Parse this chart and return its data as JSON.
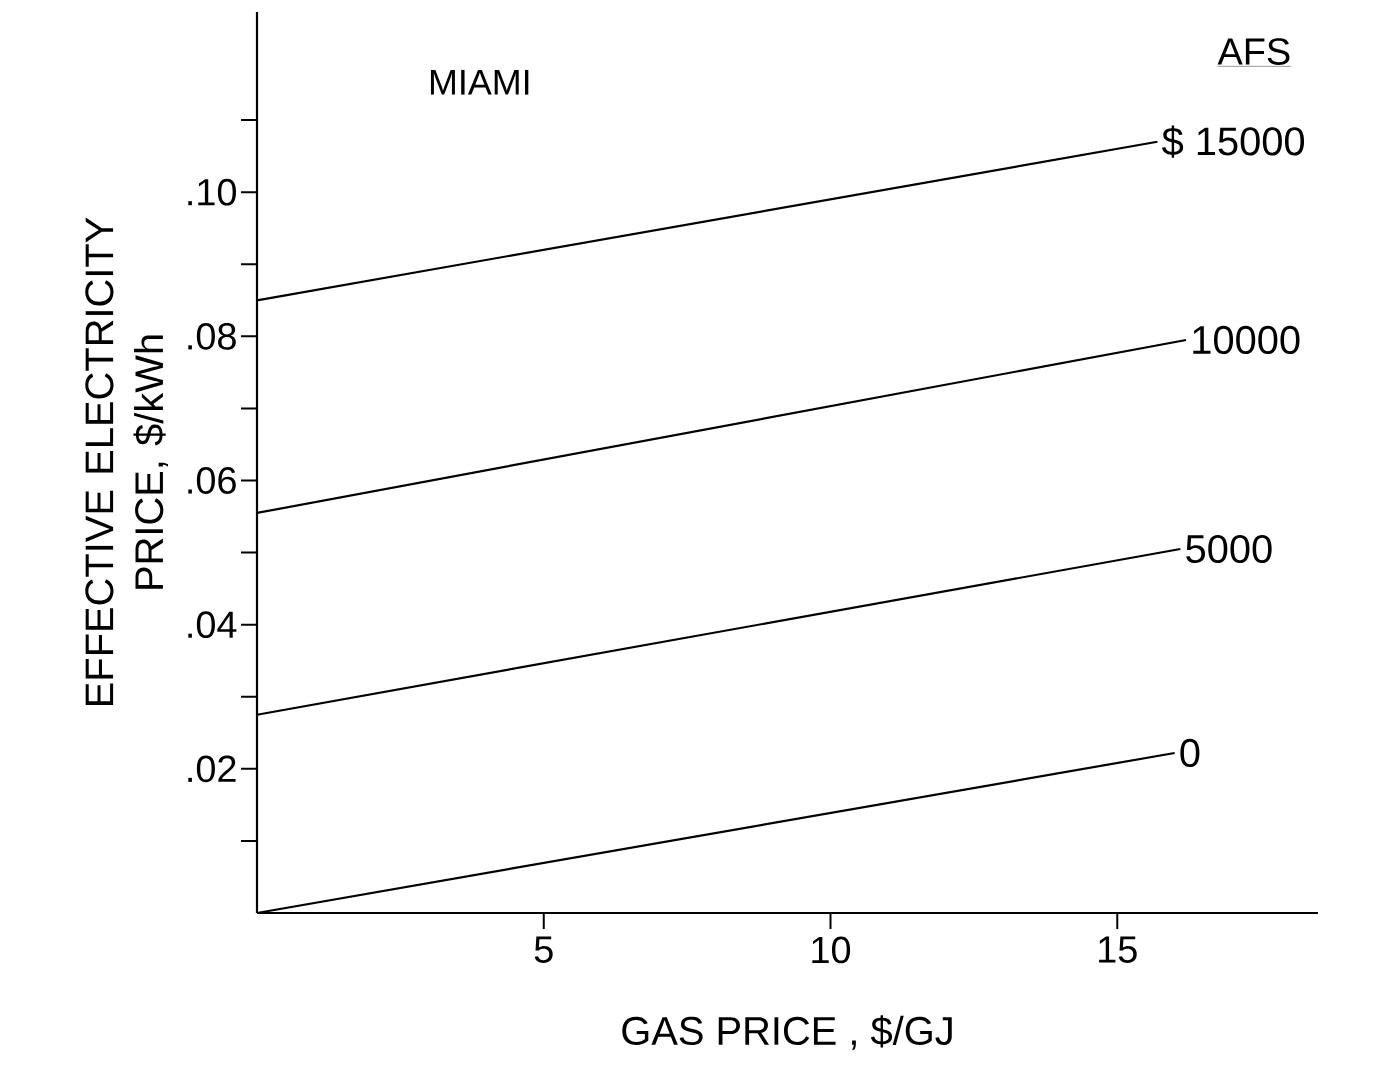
{
  "chart_data": {
    "type": "line",
    "title": "MIAMI",
    "xlabel": "GAS PRICE ,  $/GJ",
    "ylabel": "EFFECTIVE ELECTRICITY PRICE,  $/kWh",
    "legend_title": "AFS",
    "xlim": [
      0,
      18.5
    ],
    "ylim": [
      0,
      0.125
    ],
    "xticks": [
      5,
      10,
      15
    ],
    "yticks": [
      {
        "value": 0.01,
        "label": null
      },
      {
        "value": 0.02,
        "label": ".02"
      },
      {
        "value": 0.03,
        "label": null
      },
      {
        "value": 0.04,
        "label": ".04"
      },
      {
        "value": 0.05,
        "label": null
      },
      {
        "value": 0.06,
        "label": ".06"
      },
      {
        "value": 0.07,
        "label": null
      },
      {
        "value": 0.08,
        "label": ".08"
      },
      {
        "value": 0.09,
        "label": null
      },
      {
        "value": 0.1,
        "label": ".10"
      },
      {
        "value": 0.11,
        "label": null
      }
    ],
    "grid": false,
    "marker": "none",
    "line_style": "solid",
    "series": [
      {
        "name": "$ 15000",
        "color": "#000000",
        "x": [
          0,
          15.7
        ],
        "values": [
          0.085,
          0.107
        ]
      },
      {
        "name": "10000",
        "color": "#000000",
        "x": [
          0,
          16.2
        ],
        "values": [
          0.0555,
          0.0795
        ]
      },
      {
        "name": "5000",
        "color": "#000000",
        "x": [
          0,
          16.1
        ],
        "values": [
          0.0275,
          0.0505
        ]
      },
      {
        "name": "0",
        "color": "#000000",
        "x": [
          0,
          16
        ],
        "values": [
          0,
          0.0222
        ]
      }
    ]
  }
}
